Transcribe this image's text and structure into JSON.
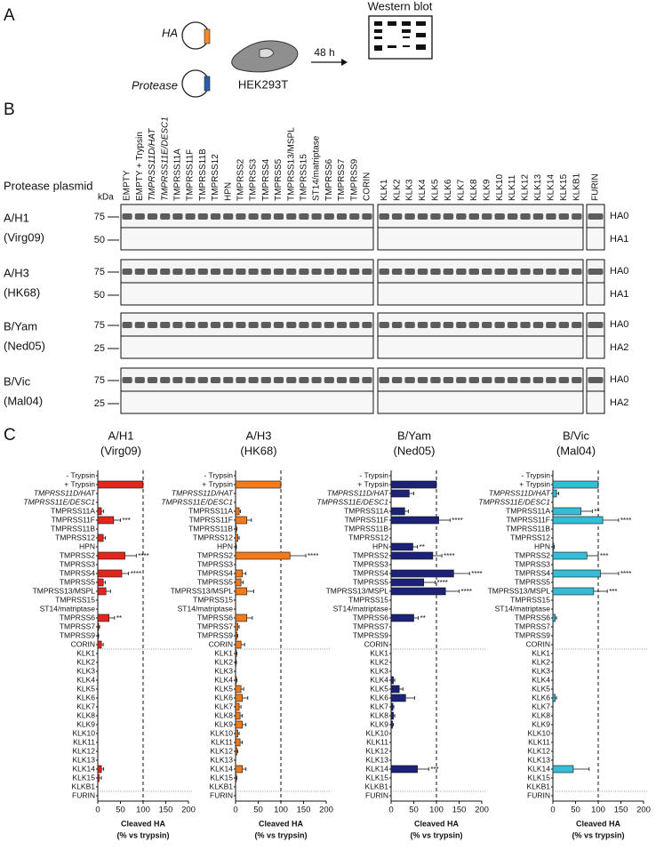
{
  "panel_a": {
    "label": "A",
    "ha": "HA",
    "protease": "Protease",
    "cell": "HEK293T",
    "time": "48 h",
    "readout": "Western blot"
  },
  "panel_b": {
    "label": "B",
    "row_header": "Protease plasmid",
    "unit": "kDa",
    "lane_groups": [
      [
        "EMPTY",
        "EMPTY + Trypsin",
        "TMPRSS11D/HAT",
        "TMPRSS11E/DESC1",
        "TMPRSS11A",
        "TMPRSS11F",
        "TMPRSS11B",
        "TMPRSS12",
        "HPN",
        "TMPRSS2",
        "TMPRSS3",
        "TMPRSS4",
        "TMPRSS5",
        "TMPRSS13/MSPL",
        "TMPRSS15",
        "ST14/matriptase",
        "TMPRSS6",
        "TMPRSS7",
        "TMPRSS9",
        "CORIN"
      ],
      [
        "KLK1",
        "KLK2",
        "KLK3",
        "KLK4",
        "KLK5",
        "KLK6",
        "KLK7",
        "KLK8",
        "KLK9",
        "KLK10",
        "KLK11",
        "KLK12",
        "KLK13",
        "KLK14",
        "KLK15",
        "KLKB1"
      ],
      [
        "FURIN"
      ]
    ],
    "rows": [
      {
        "name": "A/H1",
        "strain": "(Virg09)",
        "markers": [
          75,
          50
        ],
        "bands": [
          "HA0",
          "HA1"
        ]
      },
      {
        "name": "A/H3",
        "strain": "(HK68)",
        "markers": [
          75,
          50
        ],
        "bands": [
          "HA0",
          "HA1"
        ]
      },
      {
        "name": "B/Yam",
        "strain": "(Ned05)",
        "markers": [
          75,
          25
        ],
        "bands": [
          "HA0",
          "HA2"
        ]
      },
      {
        "name": "B/Vic",
        "strain": "(Mal04)",
        "markers": [
          75,
          25
        ],
        "bands": [
          "HA0",
          "HA2"
        ]
      }
    ]
  },
  "panel_c": {
    "label": "C"
  },
  "chart_data": [
    {
      "type": "hbar",
      "title": [
        "A/H1",
        "(Virg09)"
      ],
      "xlabel": [
        "Cleaved HA",
        "(% vs trypsin)"
      ],
      "xlim": [
        0,
        200
      ],
      "xticks": [
        0,
        50,
        100,
        150,
        200
      ],
      "reference_line": 100,
      "color": "#e3261d",
      "categories": [
        "- Trypsin",
        "+ Trypsin",
        "TMPRSS11D/HAT",
        "TMPRSS11E/DESC1",
        "TMPRSS11A",
        "TMPRSS11F",
        "TMPRSS11B",
        "TMPRSS12",
        "HPN",
        "TMPRSS2",
        "TMPRSS3",
        "TMPRSS4",
        "TMPRSS5",
        "TMPRSS13/MSPL",
        "TMPRSS15",
        "ST14/matriptase",
        "TMPRSS6",
        "TMPRSS7",
        "TMPRSS9",
        "CORIN",
        "KLK1",
        "KLK2",
        "KLK3",
        "KLK4",
        "KLK5",
        "KLK6",
        "KLK7",
        "KLK8",
        "KLK9",
        "KLK10",
        "KLK11",
        "KLK12",
        "KLK13",
        "KLK14",
        "KLK15",
        "KLKB1",
        "FURIN"
      ],
      "values": [
        0,
        100,
        0,
        0,
        8,
        35,
        0,
        12,
        0,
        60,
        0,
        53,
        12,
        18,
        0,
        0,
        25,
        2,
        1,
        8,
        0,
        0,
        0,
        0,
        0,
        0,
        0,
        0,
        0,
        0,
        0,
        0,
        0,
        8,
        3,
        0,
        0
      ],
      "errors": [
        0,
        0,
        0,
        0,
        5,
        15,
        0,
        5,
        0,
        25,
        0,
        15,
        5,
        10,
        0,
        0,
        12,
        2,
        1,
        4,
        0,
        0,
        0,
        0,
        0,
        0,
        0,
        0,
        0,
        0,
        0,
        0,
        0,
        5,
        5,
        0,
        0
      ],
      "significance": [
        null,
        null,
        null,
        null,
        null,
        "***",
        null,
        null,
        null,
        "****",
        null,
        "****",
        null,
        null,
        null,
        null,
        "**",
        null,
        null,
        null,
        null,
        null,
        null,
        null,
        null,
        null,
        null,
        null,
        null,
        null,
        null,
        null,
        null,
        null,
        null,
        null,
        null
      ]
    },
    {
      "type": "hbar",
      "title": [
        "A/H3",
        "(HK68)"
      ],
      "xlabel": [
        "Cleaved HA",
        "(% vs trypsin)"
      ],
      "xlim": [
        0,
        200
      ],
      "xticks": [
        0,
        50,
        100,
        150,
        200
      ],
      "reference_line": 100,
      "color": "#f07a1c",
      "categories": [
        "- Trypsin",
        "+ Trypsin",
        "TMPRSS11D/HAT",
        "TMPRSS11E/DESC1",
        "TMPRSS11A",
        "TMPRSS11F",
        "TMPRSS11B",
        "TMPRSS12",
        "HPN",
        "TMPRSS2",
        "TMPRSS3",
        "TMPRSS4",
        "TMPRSS5",
        "TMPRSS13/MSPL",
        "TMPRSS15",
        "ST14/matriptase",
        "TMPRSS6",
        "TMPRSS7",
        "TMPRSS9",
        "CORIN",
        "KLK1",
        "KLK2",
        "KLK3",
        "KLK4",
        "KLK5",
        "KLK6",
        "KLK7",
        "KLK8",
        "KLK9",
        "KLK10",
        "KLK11",
        "KLK12",
        "KLK13",
        "KLK14",
        "KLK15",
        "KLKB1",
        "FURIN"
      ],
      "values": [
        0,
        100,
        0,
        0,
        8,
        25,
        2,
        5,
        1,
        120,
        0,
        15,
        12,
        25,
        0,
        0,
        25,
        5,
        3,
        12,
        2,
        1,
        0,
        2,
        12,
        15,
        8,
        10,
        15,
        5,
        10,
        3,
        0,
        15,
        2,
        0,
        0
      ],
      "errors": [
        0,
        0,
        0,
        0,
        3,
        10,
        1,
        3,
        1,
        35,
        0,
        8,
        5,
        15,
        0,
        0,
        12,
        3,
        2,
        8,
        1,
        1,
        0,
        1,
        6,
        12,
        4,
        5,
        8,
        3,
        5,
        2,
        0,
        8,
        1,
        0,
        0
      ],
      "significance": [
        null,
        null,
        null,
        null,
        null,
        null,
        null,
        null,
        null,
        "****",
        null,
        null,
        null,
        null,
        null,
        null,
        null,
        null,
        null,
        null,
        null,
        null,
        null,
        null,
        null,
        null,
        null,
        null,
        null,
        null,
        null,
        null,
        null,
        null,
        null,
        null,
        null
      ]
    },
    {
      "type": "hbar",
      "title": [
        "B/Yam",
        "(Ned05)"
      ],
      "xlabel": [
        "Cleaved HA",
        "(% vs trypsin)"
      ],
      "xlim": [
        0,
        200
      ],
      "xticks": [
        0,
        50,
        100,
        150,
        200
      ],
      "reference_line": 100,
      "color": "#1b2278",
      "categories": [
        "- Trypsin",
        "+ Trypsin",
        "TMPRSS11D/HAT",
        "TMPRSS11E/DESC1",
        "TMPRSS11A",
        "TMPRSS11F",
        "TMPRSS11B",
        "TMPRSS12",
        "HPN",
        "TMPRSS2",
        "TMPRSS3",
        "TMPRSS4",
        "TMPRSS5",
        "TMPRSS13/MSPL",
        "TMPRSS15",
        "ST14/matriptase",
        "TMPRSS6",
        "TMPRSS7",
        "TMPRSS9",
        "CORIN",
        "KLK1",
        "KLK2",
        "KLK3",
        "KLK4",
        "KLK5",
        "KLK6",
        "KLK7",
        "KLK8",
        "KLK9",
        "KLK10",
        "KLK11",
        "KLK12",
        "KLK13",
        "KLK14",
        "KLK15",
        "KLKB1",
        "FURIN"
      ],
      "values": [
        0,
        100,
        40,
        0,
        30,
        105,
        0,
        0,
        48,
        92,
        0,
        138,
        72,
        120,
        0,
        0,
        50,
        0,
        0,
        0,
        0,
        0,
        0,
        5,
        18,
        32,
        4,
        5,
        3,
        0,
        0,
        0,
        0,
        58,
        0,
        0,
        0
      ],
      "errors": [
        0,
        0,
        10,
        0,
        8,
        25,
        0,
        0,
        10,
        20,
        0,
        35,
        25,
        30,
        0,
        0,
        10,
        0,
        0,
        0,
        0,
        0,
        0,
        3,
        8,
        20,
        2,
        3,
        2,
        0,
        0,
        0,
        0,
        25,
        0,
        0,
        0
      ],
      "significance": [
        null,
        null,
        null,
        null,
        null,
        "****",
        null,
        null,
        "**",
        "****",
        null,
        "****",
        "****",
        "****",
        null,
        null,
        "**",
        null,
        null,
        null,
        null,
        null,
        null,
        null,
        null,
        null,
        null,
        null,
        null,
        null,
        null,
        null,
        null,
        "***",
        null,
        null,
        null
      ]
    },
    {
      "type": "hbar",
      "title": [
        "B/Vic",
        "(Mal04)"
      ],
      "xlabel": [
        "Cleaved HA",
        "(% vs trypsin)"
      ],
      "xlim": [
        0,
        200
      ],
      "xticks": [
        0,
        50,
        100,
        150,
        200
      ],
      "reference_line": 100,
      "color": "#35bcd6",
      "categories": [
        "- Trypsin",
        "+ Trypsin",
        "TMPRSS11D/HAT",
        "TMPRSS11E/DESC1",
        "TMPRSS11A",
        "TMPRSS11F",
        "TMPRSS11B",
        "TMPRSS12",
        "HPN",
        "TMPRSS2",
        "TMPRSS3",
        "TMPRSS4",
        "TMPRSS5",
        "TMPRSS13/MSPL",
        "TMPRSS15",
        "ST14/matriptase",
        "TMPRSS6",
        "TMPRSS7",
        "TMPRSS9",
        "CORIN",
        "KLK1",
        "KLK2",
        "KLK3",
        "KLK4",
        "KLK5",
        "KLK6",
        "KLK7",
        "KLK8",
        "KLK9",
        "KLK10",
        "KLK11",
        "KLK12",
        "KLK13",
        "KLK14",
        "KLK15",
        "KLKB1",
        "FURIN"
      ],
      "values": [
        0,
        100,
        8,
        0,
        62,
        110,
        0,
        0,
        2,
        75,
        0,
        105,
        0,
        90,
        0,
        0,
        5,
        0,
        0,
        0,
        0,
        0,
        0,
        0,
        0,
        5,
        0,
        0,
        0,
        0,
        0,
        0,
        0,
        45,
        0,
        0,
        0
      ],
      "errors": [
        0,
        0,
        5,
        0,
        25,
        35,
        0,
        0,
        1,
        25,
        0,
        40,
        0,
        30,
        0,
        0,
        3,
        0,
        0,
        0,
        0,
        0,
        0,
        0,
        0,
        3,
        0,
        0,
        0,
        0,
        0,
        0,
        0,
        35,
        0,
        0,
        0
      ],
      "significance": [
        null,
        null,
        null,
        null,
        "**",
        "****",
        null,
        null,
        null,
        "***",
        null,
        "****",
        null,
        "***",
        null,
        null,
        null,
        null,
        null,
        null,
        null,
        null,
        null,
        null,
        null,
        null,
        null,
        null,
        null,
        null,
        null,
        null,
        null,
        null,
        null,
        null,
        null
      ]
    }
  ]
}
